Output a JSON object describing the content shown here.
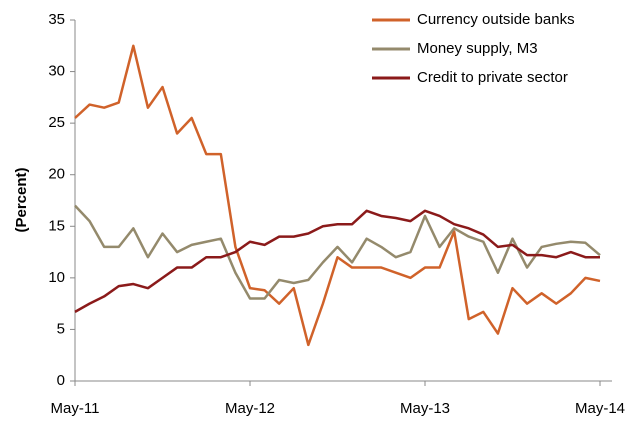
{
  "chart_data": {
    "type": "line",
    "y_label": "(Percent)",
    "categories": [
      "May-11",
      null,
      null,
      null,
      null,
      null,
      null,
      null,
      null,
      null,
      null,
      null,
      "May-12",
      null,
      null,
      null,
      null,
      null,
      null,
      null,
      null,
      null,
      null,
      null,
      "May-13",
      null,
      null,
      null,
      null,
      null,
      null,
      null,
      null,
      null,
      null,
      null,
      "May-14"
    ],
    "series": [
      {
        "name": "Currency outside banks",
        "color": "#d0622a",
        "values": [
          25.5,
          26.8,
          26.5,
          27,
          32.5,
          26.5,
          28.5,
          24,
          25.5,
          22,
          22,
          13,
          9,
          8.8,
          7.5,
          9,
          3.5,
          7.5,
          12,
          11,
          11,
          11,
          10.5,
          10,
          11,
          11,
          14.5,
          6,
          6.7,
          4.6,
          9,
          7.5,
          8.5,
          7.5,
          8.5,
          10,
          9.7
        ]
      },
      {
        "name": "Money supply, M3",
        "color": "#948a6c",
        "values": [
          17,
          15.5,
          13,
          13,
          14.8,
          12,
          14.3,
          12.5,
          13.2,
          13.5,
          13.8,
          10.5,
          8,
          8,
          9.8,
          9.5,
          9.8,
          11.5,
          13,
          11.5,
          13.8,
          13,
          12,
          12.5,
          16,
          13,
          14.8,
          14,
          13.5,
          10.5,
          13.8,
          11,
          13,
          13.3,
          13.5,
          13.4,
          12.2
        ]
      },
      {
        "name": "Credit to private sector",
        "color": "#8b1a1a",
        "values": [
          6.7,
          7.5,
          8.2,
          9.2,
          9.4,
          9,
          10,
          11,
          11,
          12,
          12,
          12.5,
          13.5,
          13.2,
          14,
          14,
          14.3,
          15,
          15.2,
          15.2,
          16.5,
          16,
          15.8,
          15.5,
          16.5,
          16,
          15.2,
          14.8,
          14.2,
          13,
          13.2,
          12.2,
          12.2,
          12,
          12.5,
          12,
          12
        ]
      }
    ],
    "ylim": [
      0,
      35
    ],
    "yticks": [
      0,
      5,
      10,
      15,
      20,
      25,
      30,
      35
    ],
    "grid": false
  }
}
